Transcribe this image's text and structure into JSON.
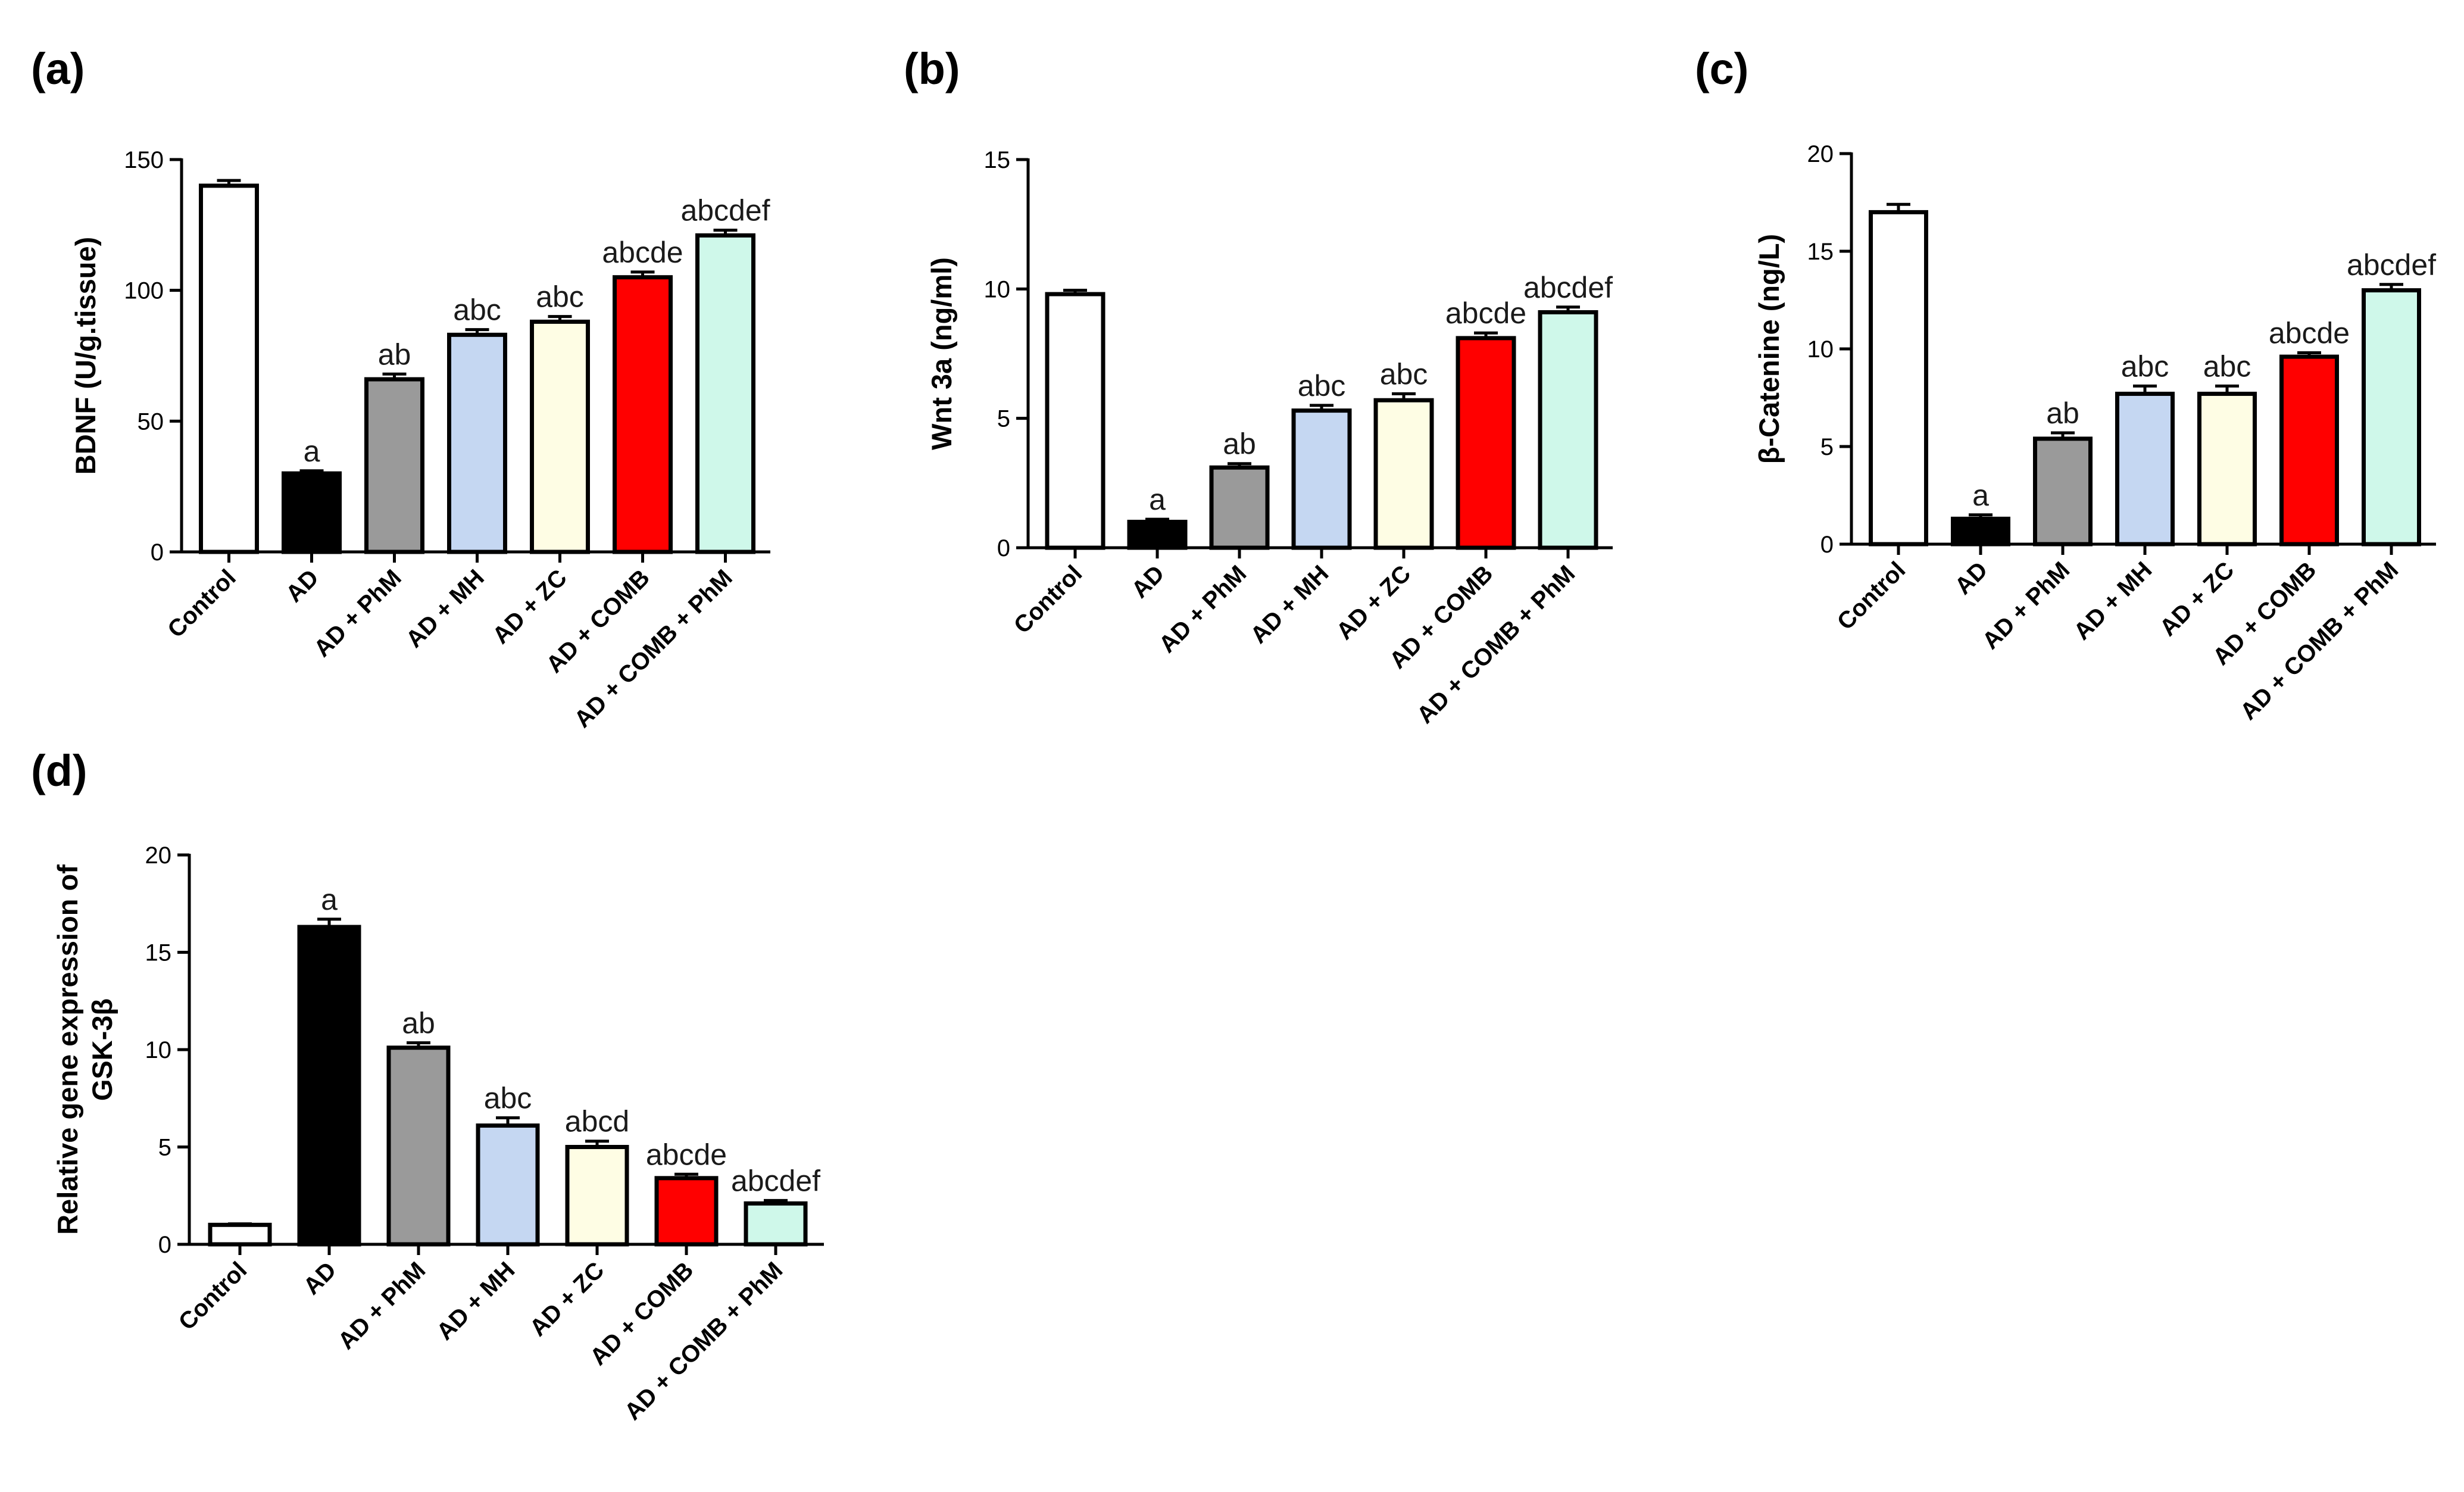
{
  "colors": [
    "#ffffff",
    "#000000",
    "#9a9a9a",
    "#c5d7f2",
    "#fefde4",
    "#ff0000",
    "#cff8ea"
  ],
  "chart_data": [
    {
      "type": "bar",
      "panel": "(a)",
      "ylabel": "BDNF (U/g.tissue)",
      "ylim": [
        0,
        150
      ],
      "yticks": [
        0,
        50,
        100,
        150
      ],
      "categories": [
        "Control",
        "AD",
        "AD + PhM",
        "AD + MH",
        "AD + ZC",
        "AD + COMB",
        "AD + COMB + PhM"
      ],
      "values": [
        140,
        30,
        66,
        83,
        88,
        105,
        121
      ],
      "errors": [
        2,
        1,
        2,
        2,
        2,
        2,
        2
      ],
      "labels": [
        "",
        "a",
        "ab",
        "abc",
        "abc",
        "abcde",
        "abcdef"
      ]
    },
    {
      "type": "bar",
      "panel": "(b)",
      "ylabel": "Wnt 3a (ng/ml)",
      "ylim": [
        0,
        15
      ],
      "yticks": [
        0,
        5,
        10,
        15
      ],
      "categories": [
        "Control",
        "AD",
        "AD + PhM",
        "AD + MH",
        "AD + ZC",
        "AD + COMB",
        "AD + COMB + PhM"
      ],
      "values": [
        9.8,
        1.0,
        3.1,
        5.3,
        5.7,
        8.1,
        9.1
      ],
      "errors": [
        0.15,
        0.1,
        0.15,
        0.2,
        0.25,
        0.2,
        0.2
      ],
      "labels": [
        "",
        "a",
        "ab",
        "abc",
        "abc",
        "abcde",
        "abcdef"
      ]
    },
    {
      "type": "bar",
      "panel": "(c)",
      "ylabel": "β-Catenine (ng/L)",
      "ylim": [
        0,
        20
      ],
      "yticks": [
        0,
        5,
        10,
        15,
        20
      ],
      "categories": [
        "Control",
        "AD",
        "AD + PhM",
        "AD + MH",
        "AD + ZC",
        "AD + COMB",
        "AD + COMB +  PhM"
      ],
      "values": [
        17.0,
        1.3,
        5.4,
        7.7,
        7.7,
        9.6,
        13.0
      ],
      "errors": [
        0.4,
        0.2,
        0.3,
        0.4,
        0.4,
        0.2,
        0.3
      ],
      "labels": [
        "",
        "a",
        "ab",
        "abc",
        "abc",
        "abcde",
        "abcdef"
      ]
    },
    {
      "type": "bar",
      "panel": "(d)",
      "ylabel_lines": [
        "Relative gene expression of",
        "GSK-3β"
      ],
      "ylim": [
        0,
        20
      ],
      "yticks": [
        0,
        5,
        10,
        15,
        20
      ],
      "categories": [
        "Control",
        "AD",
        "AD + PhM",
        "AD + MH",
        "AD + ZC",
        "AD + COMB",
        "AD + COMB + PhM"
      ],
      "values": [
        1.0,
        16.3,
        10.1,
        6.1,
        5.0,
        3.4,
        2.1
      ],
      "errors": [
        0.05,
        0.4,
        0.25,
        0.4,
        0.3,
        0.2,
        0.15
      ],
      "labels": [
        "",
        "a",
        "ab",
        "abc",
        "abcd",
        "abcde",
        "abcdef"
      ]
    }
  ]
}
